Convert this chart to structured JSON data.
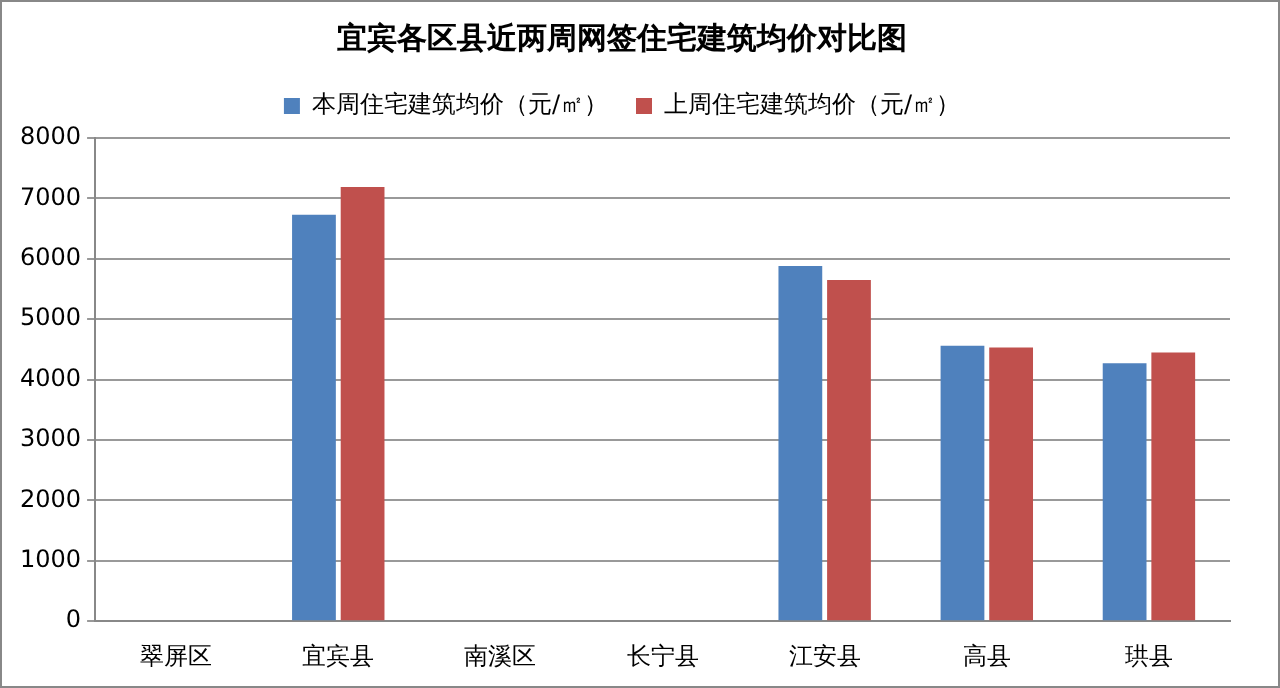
{
  "chart_data": {
    "type": "bar",
    "title": "宜宾各区县近两周网签住宅建筑均价对比图",
    "categories": [
      "翠屏区",
      "宜宾县",
      "南溪区",
      "长宁县",
      "江安县",
      "高县",
      "珙县"
    ],
    "series": [
      {
        "name": "本周住宅建筑均价（元/㎡）",
        "color": "#4f81bd",
        "values": [
          null,
          6730,
          null,
          null,
          5880,
          4560,
          4270
        ]
      },
      {
        "name": "上周住宅建筑均价（元/㎡）",
        "color": "#c0504d",
        "values": [
          null,
          7190,
          null,
          null,
          5650,
          4530,
          4450
        ]
      }
    ],
    "ylim": [
      0,
      8000
    ],
    "yticks": [
      0,
      1000,
      2000,
      3000,
      4000,
      5000,
      6000,
      7000,
      8000
    ],
    "grid": "y",
    "legend": "top"
  }
}
